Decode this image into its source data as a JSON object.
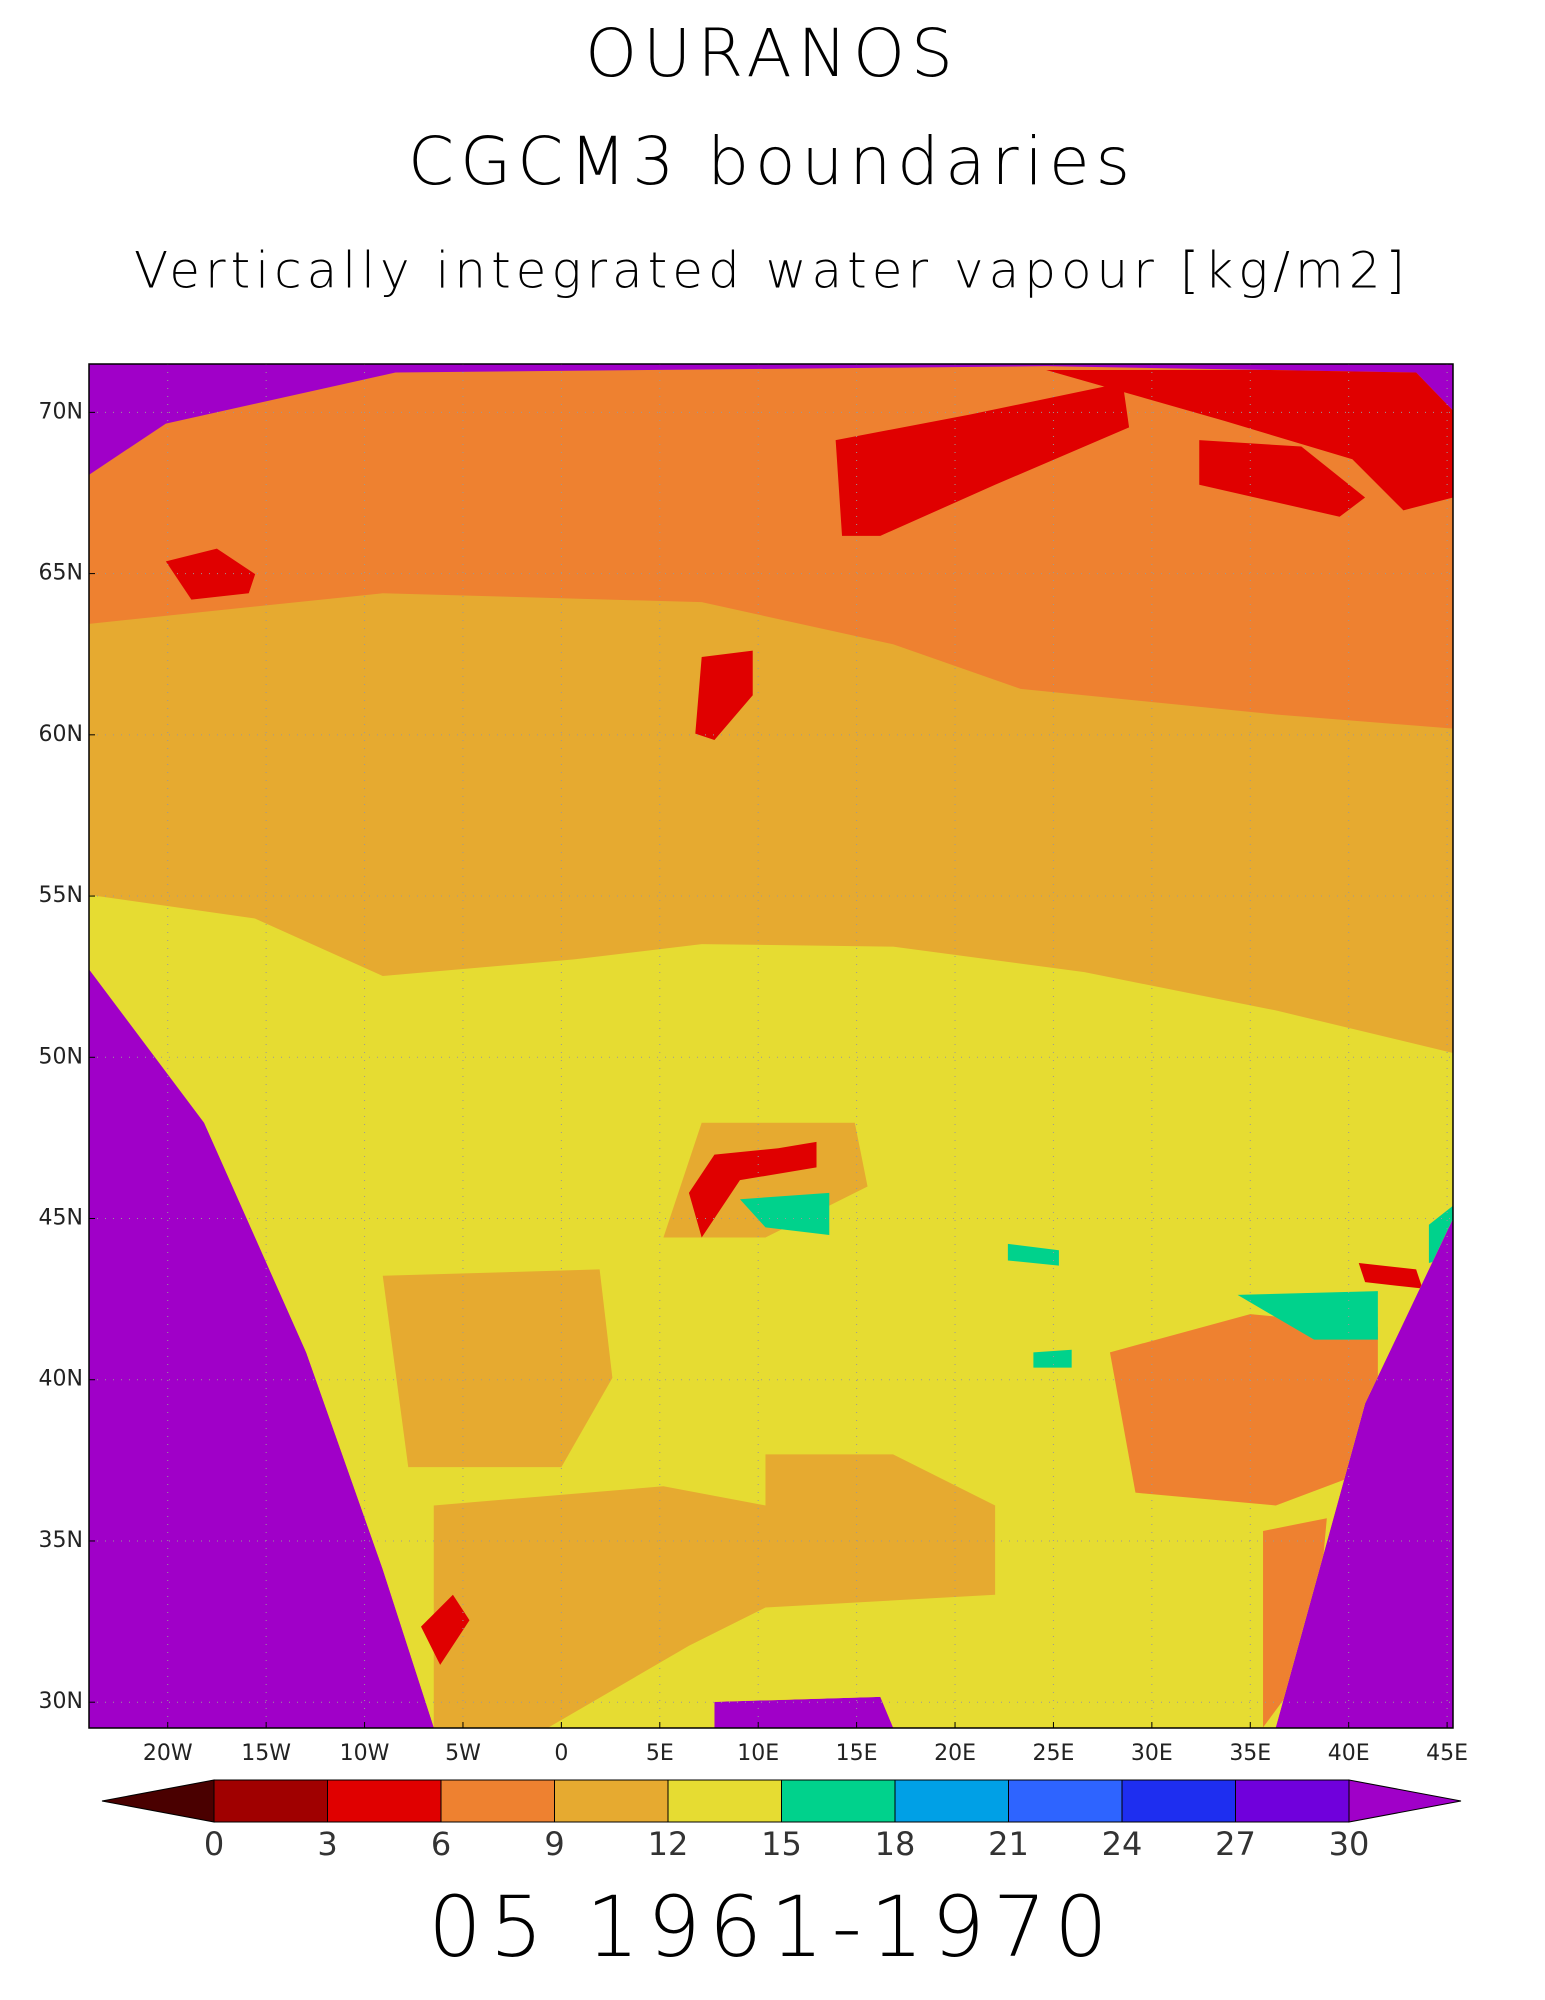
{
  "map": {
    "title_lines": [
      "OURANOS",
      "CGCM3 boundaries",
      "Vertically integrated water vapour [kg/m2]"
    ],
    "footer": "05 1961-1970",
    "xlim": [
      -24,
      45.3
    ],
    "ylim": [
      29.2,
      71.5
    ],
    "grid": true,
    "lon_ticks": [
      {
        "value": -20,
        "label": "20W"
      },
      {
        "value": -15,
        "label": "15W"
      },
      {
        "value": -10,
        "label": "10W"
      },
      {
        "value": -5,
        "label": "5W"
      },
      0,
      {
        "value": 5,
        "label": "5E"
      },
      {
        "value": 10,
        "label": "10E"
      },
      {
        "value": 15,
        "label": "15E"
      },
      {
        "value": 20,
        "label": "20E"
      },
      {
        "value": 25,
        "label": "25E"
      },
      {
        "value": 30,
        "label": "30E"
      },
      {
        "value": 35,
        "label": "35E"
      },
      {
        "value": 40,
        "label": "40E"
      },
      {
        "value": 45,
        "label": "45E"
      }
    ],
    "lat_ticks": [
      {
        "value": 30,
        "label": "30N"
      },
      {
        "value": 35,
        "label": "35N"
      },
      {
        "value": 40,
        "label": "40N"
      },
      {
        "value": 45,
        "label": "45N"
      },
      {
        "value": 50,
        "label": "50N"
      },
      {
        "value": 55,
        "label": "55N"
      },
      {
        "value": 60,
        "label": "60N"
      },
      {
        "value": 65,
        "label": "65N"
      },
      {
        "value": 70,
        "label": "70N"
      }
    ],
    "colorbar": {
      "levels": [
        0,
        3,
        6,
        9,
        12,
        15,
        18,
        21,
        24,
        27,
        30
      ],
      "under_color": "#4a0000",
      "colors": [
        "#a00000",
        "#e00000",
        "#ee8130",
        "#e6aa30",
        "#e6dc32",
        "#00d28c",
        "#00a0e6",
        "#2e64ff",
        "#1e2ef0",
        "#7000dc"
      ],
      "over_color": "#a000c8"
    }
  }
}
